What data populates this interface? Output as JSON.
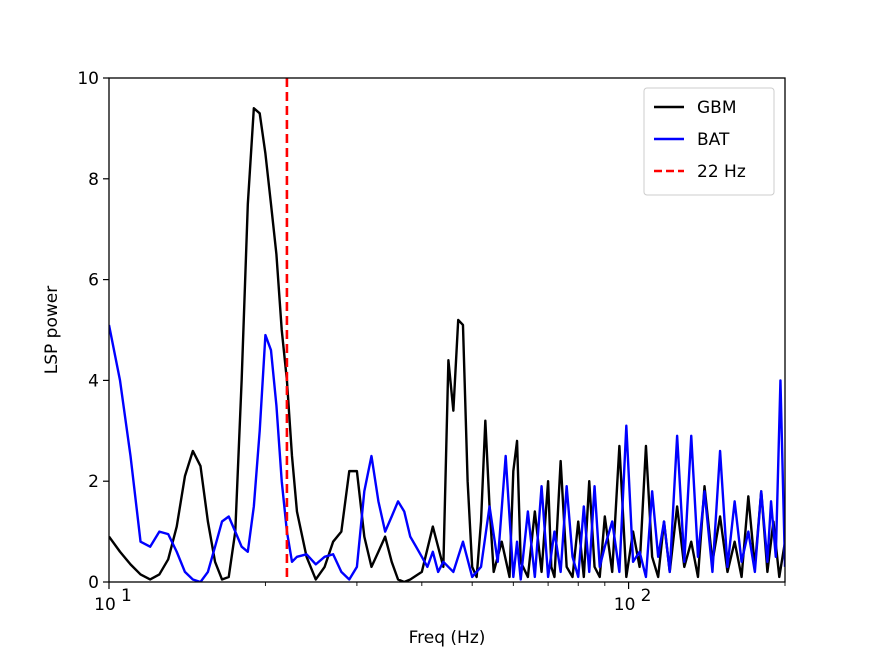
{
  "chart_data": {
    "type": "line",
    "title": "",
    "xlabel": "Freq (Hz)",
    "ylabel": "LSP power",
    "xscale": "log",
    "xlim": [
      10,
      200
    ],
    "ylim": [
      0,
      10
    ],
    "xticks": [
      10,
      100
    ],
    "xtick_labels": [
      {
        "base": "10",
        "exp": "1"
      },
      {
        "base": "10",
        "exp": "2"
      }
    ],
    "yticks": [
      0,
      2,
      4,
      6,
      8,
      10
    ],
    "ytick_labels": [
      "0",
      "2",
      "4",
      "6",
      "8",
      "10"
    ],
    "grid": false,
    "legend_position": "top-right",
    "series": [
      {
        "name": "GBM",
        "color": "#000000",
        "style": "solid",
        "x": [
          10,
          10.5,
          11,
          11.5,
          12,
          12.5,
          13,
          13.5,
          14,
          14.5,
          15,
          15.5,
          16,
          16.5,
          17,
          17.5,
          18,
          18.5,
          19,
          19.5,
          20,
          20.5,
          21,
          21.5,
          22,
          22.5,
          23,
          24,
          25,
          26,
          27,
          28,
          29,
          30,
          31,
          32,
          33,
          34,
          35,
          36,
          37,
          38,
          40,
          42,
          44,
          45,
          46,
          47,
          48,
          49,
          50,
          51,
          52,
          53,
          54,
          55,
          57,
          59,
          60,
          61,
          62,
          64,
          66,
          68,
          70,
          71,
          72,
          74,
          76,
          78,
          80,
          82,
          84,
          86,
          88,
          90,
          93,
          96,
          99,
          102,
          105,
          108,
          111,
          114,
          117,
          120,
          124,
          128,
          132,
          136,
          140,
          145,
          150,
          155,
          160,
          165,
          170,
          175,
          180,
          185,
          190,
          195,
          200
        ],
        "values": [
          0.9,
          0.6,
          0.35,
          0.15,
          0.05,
          0.15,
          0.45,
          1.1,
          2.1,
          2.6,
          2.3,
          1.2,
          0.4,
          0.05,
          0.1,
          1.0,
          4.0,
          7.5,
          9.4,
          9.3,
          8.5,
          7.5,
          6.5,
          5.0,
          4.0,
          2.5,
          1.4,
          0.5,
          0.05,
          0.3,
          0.8,
          1.0,
          2.2,
          2.2,
          0.9,
          0.3,
          0.6,
          0.9,
          0.4,
          0.05,
          0.0,
          0.05,
          0.2,
          1.1,
          0.3,
          4.4,
          3.4,
          5.2,
          5.1,
          2.0,
          0.3,
          0.1,
          1.2,
          3.2,
          1.5,
          0.2,
          0.8,
          0.1,
          2.2,
          2.8,
          0.4,
          0.1,
          1.4,
          0.2,
          2.0,
          0.3,
          0.1,
          2.4,
          0.3,
          0.1,
          1.2,
          0.1,
          2.0,
          0.3,
          0.1,
          1.3,
          0.2,
          2.7,
          0.1,
          1.0,
          0.3,
          2.7,
          0.5,
          0.1,
          1.2,
          0.2,
          1.5,
          0.3,
          0.8,
          0.1,
          1.9,
          0.4,
          1.3,
          0.2,
          0.8,
          0.1,
          1.7,
          0.3,
          1.8,
          0.2,
          1.2,
          0.1,
          0.8
        ]
      },
      {
        "name": "BAT",
        "color": "#0000ff",
        "style": "solid",
        "x": [
          10,
          10.5,
          11,
          11.5,
          12,
          12.5,
          13,
          13.5,
          14,
          14.5,
          15,
          15.5,
          16,
          16.5,
          17,
          17.5,
          18,
          18.5,
          19,
          19.5,
          20,
          20.5,
          21,
          21.5,
          22,
          22.5,
          23,
          24,
          25,
          26,
          27,
          28,
          29,
          30,
          31,
          32,
          33,
          34,
          35,
          36,
          37,
          38,
          39,
          40,
          41,
          42,
          43,
          44,
          46,
          48,
          50,
          52,
          54,
          56,
          58,
          60,
          61,
          62,
          64,
          66,
          68,
          70,
          72,
          74,
          76,
          78,
          80,
          82,
          84,
          86,
          88,
          90,
          93,
          96,
          99,
          102,
          105,
          108,
          111,
          114,
          117,
          120,
          124,
          128,
          132,
          136,
          140,
          145,
          150,
          155,
          160,
          165,
          170,
          175,
          180,
          185,
          188,
          192,
          196,
          200
        ],
        "values": [
          5.1,
          4.0,
          2.5,
          0.8,
          0.7,
          1.0,
          0.95,
          0.6,
          0.2,
          0.05,
          0.0,
          0.2,
          0.7,
          1.2,
          1.3,
          1.0,
          0.7,
          0.6,
          1.5,
          3.0,
          4.9,
          4.6,
          3.5,
          2.0,
          1.0,
          0.4,
          0.5,
          0.55,
          0.35,
          0.5,
          0.55,
          0.2,
          0.05,
          0.3,
          1.8,
          2.5,
          1.6,
          1.0,
          1.3,
          1.6,
          1.4,
          0.9,
          0.7,
          0.5,
          0.3,
          0.6,
          0.2,
          0.4,
          0.2,
          0.8,
          0.1,
          0.3,
          1.5,
          0.4,
          2.5,
          0.1,
          0.8,
          0.05,
          1.4,
          0.1,
          1.9,
          0.1,
          1.0,
          0.2,
          1.9,
          0.5,
          0.1,
          1.5,
          0.2,
          1.9,
          0.3,
          0.7,
          1.2,
          0.2,
          3.1,
          0.4,
          0.6,
          0.1,
          1.8,
          0.5,
          1.2,
          0.2,
          2.9,
          0.4,
          2.9,
          0.5,
          1.8,
          0.2,
          2.6,
          0.3,
          1.6,
          0.4,
          1.0,
          0.2,
          1.8,
          0.4,
          1.6,
          0.5,
          4.0,
          0.3
        ]
      },
      {
        "name": "22 Hz",
        "color": "#ff0000",
        "style": "dashed",
        "vline": 22
      }
    ]
  }
}
